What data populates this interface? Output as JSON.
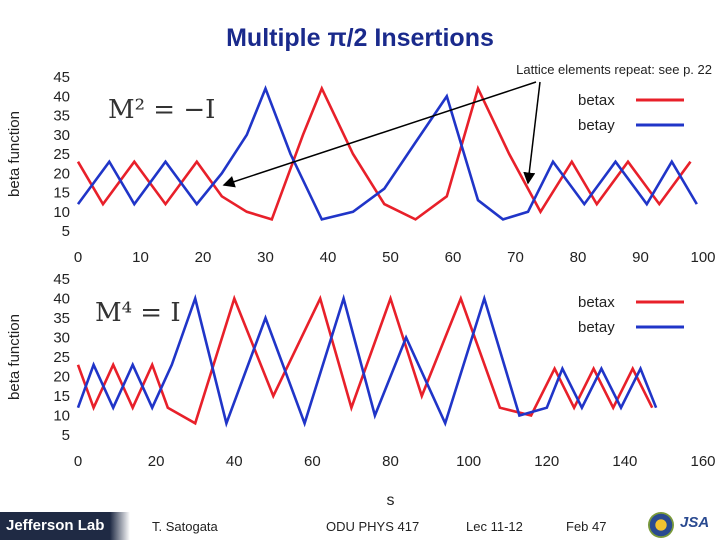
{
  "slide": {
    "title": "Multiple π/2 Insertions",
    "annotation": "Lattice elements repeat: see p. 22"
  },
  "footer": {
    "brand": "Jefferson Lab",
    "author": "T. Satogata",
    "course": "ODU PHYS 417",
    "lecture": "Lec 11-12",
    "page": "Feb 47",
    "logo_right": "JSA",
    "logo_left_icon": "seal-icon"
  },
  "colors": {
    "betax": "#e8202a",
    "betay": "#2035c8",
    "title": "#1a2a8c",
    "arrow": "#000000"
  },
  "chart_data": [
    {
      "type": "line",
      "formula": "M² = −I",
      "ylabel": "beta function",
      "xlabel": "",
      "xlim": [
        0,
        100
      ],
      "ylim": [
        5,
        45
      ],
      "xticks": [
        0,
        10,
        20,
        30,
        40,
        50,
        60,
        70,
        80,
        90,
        100
      ],
      "yticks": [
        5,
        10,
        15,
        20,
        25,
        30,
        35,
        40,
        45
      ],
      "legend_position": "top-right",
      "grid": false,
      "series": [
        {
          "name": "betax",
          "color": "#e8202a",
          "x": [
            0,
            4,
            9,
            14,
            19,
            23,
            27,
            31,
            36,
            39,
            44,
            49,
            54,
            59,
            64,
            69,
            74,
            79,
            83,
            88,
            93,
            98
          ],
          "y": [
            23,
            12,
            23,
            12,
            23,
            14,
            10,
            8,
            30,
            42,
            25,
            12,
            8,
            14,
            42,
            25,
            10,
            23,
            12,
            23,
            12,
            23
          ]
        },
        {
          "name": "betay",
          "color": "#2035c8",
          "x": [
            0,
            5,
            9,
            14,
            19,
            23,
            27,
            30,
            34,
            39,
            44,
            49,
            54,
            59,
            64,
            68,
            72,
            76,
            81,
            86,
            91,
            95,
            99
          ],
          "y": [
            12,
            23,
            12,
            23,
            12,
            20,
            30,
            42,
            25,
            8,
            10,
            16,
            28,
            40,
            13,
            8,
            10,
            23,
            12,
            23,
            12,
            23,
            12
          ]
        }
      ]
    },
    {
      "type": "line",
      "formula": "M⁴ = I",
      "ylabel": "beta function",
      "xlabel": "s",
      "xlim": [
        0,
        160
      ],
      "ylim": [
        5,
        45
      ],
      "xticks": [
        0,
        20,
        40,
        60,
        80,
        100,
        120,
        140,
        160
      ],
      "yticks": [
        5,
        10,
        15,
        20,
        25,
        30,
        35,
        40,
        45
      ],
      "legend_position": "top-right",
      "grid": false,
      "series": [
        {
          "name": "betax",
          "color": "#e8202a",
          "x": [
            0,
            4,
            9,
            14,
            19,
            23,
            30,
            40,
            50,
            62,
            70,
            80,
            88,
            98,
            108,
            116,
            122,
            127,
            132,
            137,
            142,
            147
          ],
          "y": [
            23,
            12,
            23,
            12,
            23,
            12,
            8,
            40,
            15,
            40,
            12,
            40,
            15,
            40,
            12,
            10,
            22,
            12,
            22,
            12,
            22,
            12
          ]
        },
        {
          "name": "betay",
          "color": "#2035c8",
          "x": [
            0,
            4,
            9,
            14,
            19,
            24,
            30,
            38,
            48,
            58,
            68,
            76,
            84,
            94,
            104,
            113,
            120,
            124,
            129,
            134,
            139,
            144,
            148
          ],
          "y": [
            12,
            23,
            12,
            23,
            12,
            23,
            40,
            8,
            35,
            8,
            40,
            10,
            30,
            8,
            40,
            10,
            12,
            22,
            12,
            22,
            12,
            22,
            12
          ]
        }
      ]
    }
  ]
}
